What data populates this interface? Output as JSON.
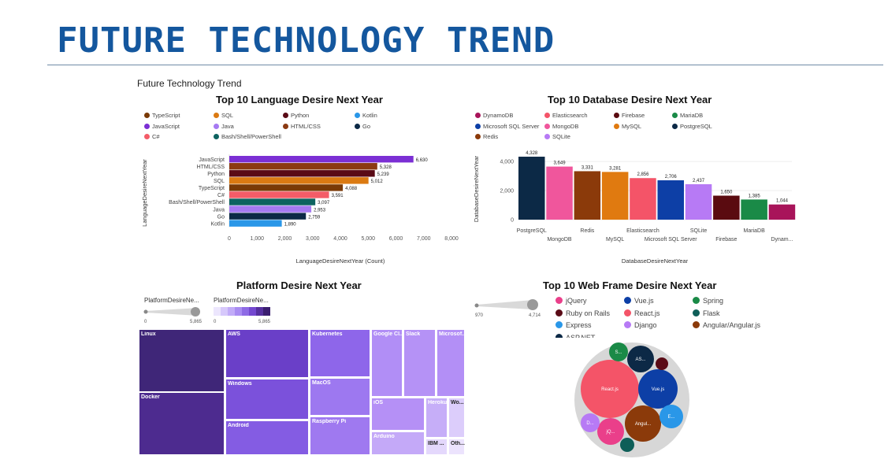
{
  "header": {
    "title": "FUTURE TECHNOLOGY TREND",
    "subtitle": "Future Technology Trend"
  },
  "chart_data": [
    {
      "id": "language",
      "type": "bar",
      "orientation": "horizontal",
      "title": "Top 10 Language Desire Next Year",
      "xlabel": "LanguageDesireNextYear (Count)",
      "ylabel": "LanguageDesireNextYear",
      "xlim": [
        0,
        8000
      ],
      "xticks": [
        "0",
        "1,000",
        "2,000",
        "3,000",
        "4,000",
        "5,000",
        "6,000",
        "7,000",
        "8,000"
      ],
      "categories": [
        "JavaScript",
        "HTML/CSS",
        "Python",
        "SQL",
        "TypeScript",
        "C#",
        "Bash/Shell/PowerShell",
        "Java",
        "Go",
        "Kotlin"
      ],
      "values": [
        6630,
        5328,
        5239,
        5012,
        4088,
        3591,
        3097,
        2953,
        2759,
        1890
      ],
      "value_labels": [
        "6,630",
        "5,328",
        "5,239",
        "5,012",
        "4,088",
        "3,591",
        "3,097",
        "2,953",
        "2,759",
        "1,890"
      ],
      "colors": [
        "#7b2fd4",
        "#8b3a12",
        "#5a0b16",
        "#db7a12",
        "#7a3a06",
        "#f45c68",
        "#0e6360",
        "#a67af2",
        "#0c2946",
        "#2a97e8"
      ],
      "legend": [
        {
          "label": "TypeScript",
          "color": "#7a3a06"
        },
        {
          "label": "SQL",
          "color": "#db7a12"
        },
        {
          "label": "Python",
          "color": "#5a0b16"
        },
        {
          "label": "Kotlin",
          "color": "#2a97e8"
        },
        {
          "label": "JavaScript",
          "color": "#7b2fd4"
        },
        {
          "label": "Java",
          "color": "#a67af2"
        },
        {
          "label": "HTML/CSS",
          "color": "#8b3a12"
        },
        {
          "label": "Go",
          "color": "#0c2946"
        },
        {
          "label": "C#",
          "color": "#f45c68"
        },
        {
          "label": "Bash/Shell/PowerShell",
          "color": "#0e6360"
        }
      ]
    },
    {
      "id": "database",
      "type": "bar",
      "orientation": "vertical",
      "title": "Top 10 Database Desire Next Year",
      "xlabel": "DatabaseDesireNextYear",
      "ylabel": "DatabaseDesireNextYear",
      "ylim": [
        0,
        4600
      ],
      "yticks": [
        "0",
        "2,000",
        "4,000"
      ],
      "categories": [
        "PostgreSQL",
        "MongoDB",
        "Redis",
        "MySQL",
        "Elasticsearch",
        "Microsoft SQL Server",
        "SQLite",
        "Firebase",
        "MariaDB",
        "Dynam..."
      ],
      "values": [
        4328,
        3649,
        3331,
        3281,
        2856,
        2706,
        2437,
        1650,
        1385,
        1044
      ],
      "value_labels": [
        "4,328",
        "3,649",
        "3,331",
        "3,281",
        "2,856",
        "2,706",
        "2,437",
        "1,650",
        "1,385",
        "1,044"
      ],
      "colors": [
        "#0c2946",
        "#f0569c",
        "#8b3a0a",
        "#e07a10",
        "#f45468",
        "#0d3fa6",
        "#b77af5",
        "#5a0b10",
        "#1a8a47",
        "#a8145a"
      ],
      "legend": [
        {
          "label": "DynamoDB",
          "color": "#a8145a"
        },
        {
          "label": "Elasticsearch",
          "color": "#f45468"
        },
        {
          "label": "Firebase",
          "color": "#5a0b10"
        },
        {
          "label": "MariaDB",
          "color": "#1a8a47"
        },
        {
          "label": "Microsoft SQL Server",
          "color": "#0d3fa6"
        },
        {
          "label": "MongoDB",
          "color": "#f0569c"
        },
        {
          "label": "MySQL",
          "color": "#e07a10"
        },
        {
          "label": "PostgreSQL",
          "color": "#0c2946"
        },
        {
          "label": "Redis",
          "color": "#8b3a0a"
        },
        {
          "label": "SQLite",
          "color": "#b77af5"
        }
      ]
    },
    {
      "id": "platform",
      "type": "heatmap",
      "subtype": "treemap",
      "title": "Platform Desire Next Year",
      "size_legend": {
        "title": "PlatformDesireNe...",
        "min": "0",
        "max": "5,865"
      },
      "color_legend": {
        "title": "PlatformDesireNe...",
        "min": "0",
        "max": "5,865"
      },
      "tiles": [
        "Linux",
        "Docker",
        "AWS",
        "Windows",
        "Android",
        "Kubernetes",
        "MacOS",
        "Raspberry Pi",
        "Google Cl...",
        "Slack",
        "Microsof...",
        "iOS",
        "Heroku",
        "Wo...",
        "Arduino",
        "IBM ...",
        "Oth..."
      ]
    },
    {
      "id": "webframe",
      "type": "scatter",
      "subtype": "packed-bubble",
      "title": "Top 10 Web Frame Desire Next Year",
      "size_legend": {
        "min": "970",
        "max": "4,714"
      },
      "legend": [
        {
          "label": "jQuery",
          "color": "#ea3f8a"
        },
        {
          "label": "Vue.js",
          "color": "#0d3fa6"
        },
        {
          "label": "Spring",
          "color": "#1a8a47"
        },
        {
          "label": "Ruby on Rails",
          "color": "#5a0b16"
        },
        {
          "label": "React.js",
          "color": "#f45468"
        },
        {
          "label": "Flask",
          "color": "#0e5e58"
        },
        {
          "label": "Express",
          "color": "#2a97e8"
        },
        {
          "label": "Django",
          "color": "#b77af5"
        },
        {
          "label": "Angular/Angular.js",
          "color": "#8b3a0a"
        },
        {
          "label": "ASP.NET",
          "color": "#0c2946"
        }
      ],
      "bubbles": [
        {
          "label": "React.js",
          "color": "#f45468"
        },
        {
          "label": "Vue.js",
          "color": "#0d3fa6"
        },
        {
          "label": "AS...",
          "color": "#0c2946"
        },
        {
          "label": "Angul...",
          "color": "#8b3a0a"
        },
        {
          "label": "E...",
          "color": "#2a97e8"
        },
        {
          "label": "S...",
          "color": "#1a8a47"
        },
        {
          "label": "jQ...",
          "color": "#ea3f8a"
        },
        {
          "label": "D...",
          "color": "#b77af5"
        },
        {
          "label": "",
          "color": "#5a0b16"
        },
        {
          "label": "",
          "color": "#0e5e58"
        }
      ]
    }
  ]
}
